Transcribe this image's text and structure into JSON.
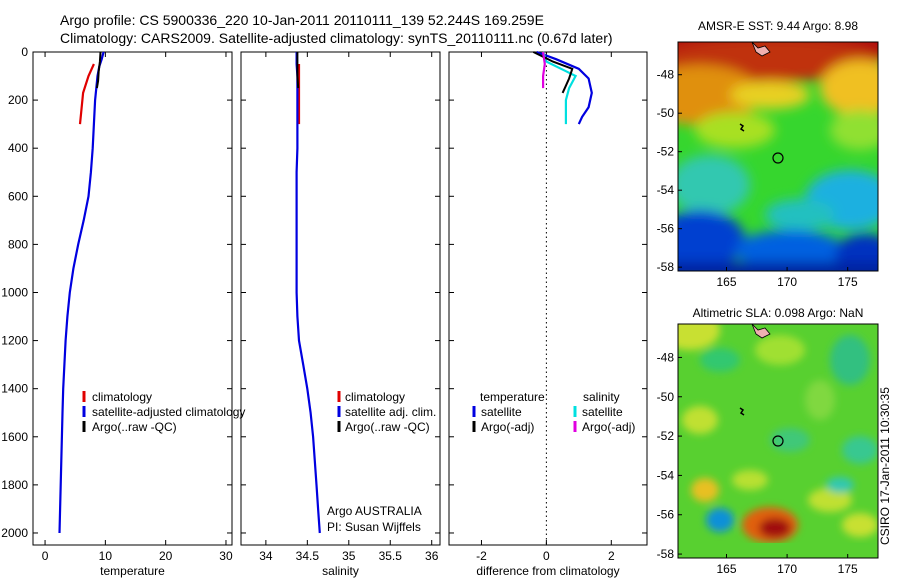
{
  "header": {
    "title_line1": "Argo profile: CS 5900336_220 10-Jan-2011 20110111_139 52.244S 169.259E",
    "title_line2": "Climatology: CARS2009. Satellite-adjusted climatology: synTS_20110111.nc (0.67d later)"
  },
  "chart_data": [
    {
      "type": "line",
      "name": "temperature-profile",
      "xlabel": "temperature",
      "ylabel": "",
      "xlim": [
        -2,
        31
      ],
      "ylim": [
        2050,
        0
      ],
      "xticks": [
        0,
        10,
        20,
        30
      ],
      "yticks": [
        0,
        200,
        400,
        600,
        800,
        1000,
        1200,
        1400,
        1600,
        1800,
        2000
      ],
      "legend": [
        "climatology",
        "satellite-adjusted climatology",
        "Argo(..raw -QC)"
      ],
      "series": [
        {
          "name": "climatology",
          "color": "#e00000",
          "points": [
            [
              8.1,
              50
            ],
            [
              7.2,
              100
            ],
            [
              6.3,
              170
            ],
            [
              6.0,
              250
            ],
            [
              5.8,
              300
            ]
          ]
        },
        {
          "name": "satellite-adjusted climatology",
          "color": "#0000e0",
          "points": [
            [
              9.7,
              0
            ],
            [
              9.4,
              30
            ],
            [
              9.0,
              60
            ],
            [
              8.7,
              100
            ],
            [
              8.5,
              150
            ],
            [
              8.3,
              200
            ],
            [
              8.1,
              300
            ],
            [
              7.9,
              400
            ],
            [
              7.6,
              500
            ],
            [
              7.2,
              600
            ],
            [
              6.4,
              700
            ],
            [
              5.5,
              800
            ],
            [
              4.7,
              900
            ],
            [
              4.1,
              1000
            ],
            [
              3.7,
              1100
            ],
            [
              3.4,
              1200
            ],
            [
              3.2,
              1300
            ],
            [
              3.0,
              1400
            ],
            [
              2.9,
              1500
            ],
            [
              2.8,
              1600
            ],
            [
              2.7,
              1700
            ],
            [
              2.6,
              1800
            ],
            [
              2.5,
              1900
            ],
            [
              2.4,
              2000
            ]
          ]
        },
        {
          "name": "Argo(..raw -QC)",
          "color": "#000000",
          "points": [
            [
              9.2,
              0
            ],
            [
              9.1,
              40
            ],
            [
              8.9,
              80
            ],
            [
              8.8,
              120
            ],
            [
              8.6,
              150
            ]
          ]
        }
      ]
    },
    {
      "type": "line",
      "name": "salinity-profile",
      "xlabel": "salinity",
      "ylabel": "",
      "xlim": [
        33.7,
        36.1
      ],
      "ylim": [
        2050,
        0
      ],
      "xticks": [
        34,
        34.5,
        35,
        35.5,
        36
      ],
      "xticklabels": [
        "34",
        "34.5",
        "35",
        "35.5",
        "36"
      ],
      "legend": [
        "climatology",
        "satellite adj. clim.",
        "Argo(..raw -QC)"
      ],
      "annotations": [
        "Argo AUSTRALIA",
        "PI: Susan Wijffels"
      ],
      "series": [
        {
          "name": "climatology",
          "color": "#e00000",
          "points": [
            [
              34.4,
              50
            ],
            [
              34.4,
              100
            ],
            [
              34.4,
              200
            ],
            [
              34.4,
              300
            ]
          ]
        },
        {
          "name": "satellite adj. clim.",
          "color": "#0000e0",
          "points": [
            [
              34.37,
              0
            ],
            [
              34.37,
              50
            ],
            [
              34.38,
              100
            ],
            [
              34.38,
              200
            ],
            [
              34.38,
              300
            ],
            [
              34.38,
              400
            ],
            [
              34.37,
              500
            ],
            [
              34.37,
              600
            ],
            [
              34.37,
              700
            ],
            [
              34.37,
              800
            ],
            [
              34.37,
              900
            ],
            [
              34.37,
              1000
            ],
            [
              34.38,
              1100
            ],
            [
              34.4,
              1200
            ],
            [
              34.45,
              1300
            ],
            [
              34.5,
              1400
            ],
            [
              34.54,
              1500
            ],
            [
              34.57,
              1600
            ],
            [
              34.59,
              1700
            ],
            [
              34.61,
              1800
            ],
            [
              34.63,
              1900
            ],
            [
              34.65,
              2000
            ]
          ]
        },
        {
          "name": "Argo(..raw -QC)",
          "color": "#000000",
          "points": [
            [
              34.38,
              0
            ],
            [
              34.38,
              50
            ],
            [
              34.38,
              100
            ],
            [
              34.39,
              150
            ]
          ]
        }
      ]
    },
    {
      "type": "line",
      "name": "difference-profile",
      "xlabel": "difference from climatology",
      "ylabel": "",
      "xlim": [
        -3,
        3.1
      ],
      "ylim": [
        2050,
        0
      ],
      "xticks": [
        -2,
        0,
        2
      ],
      "legend_title_left": "temperature",
      "legend_title_right": "salinity",
      "legend_left": [
        "satellite",
        "Argo(-adj)"
      ],
      "legend_right": [
        "satellite",
        "Argo(-adj)"
      ],
      "series": [
        {
          "name": "temperature satellite",
          "color": "#0000e0",
          "points": [
            [
              -0.3,
              0
            ],
            [
              0.3,
              30
            ],
            [
              1.0,
              70
            ],
            [
              1.3,
              110
            ],
            [
              1.4,
              170
            ],
            [
              1.3,
              230
            ],
            [
              1.1,
              270
            ],
            [
              1.0,
              300
            ]
          ]
        },
        {
          "name": "salinity satellite",
          "color": "#00e0e0",
          "points": [
            [
              -0.1,
              0
            ],
            [
              0.0,
              40
            ],
            [
              0.6,
              80
            ],
            [
              0.9,
              100
            ],
            [
              0.7,
              150
            ],
            [
              0.6,
              200
            ],
            [
              0.6,
              260
            ],
            [
              0.6,
              300
            ]
          ]
        },
        {
          "name": "temperature Argo(-adj)",
          "color": "#000000",
          "points": [
            [
              -0.4,
              0
            ],
            [
              0.2,
              40
            ],
            [
              0.8,
              70
            ],
            [
              0.7,
              110
            ],
            [
              0.6,
              140
            ],
            [
              0.5,
              170
            ]
          ]
        },
        {
          "name": "salinity Argo(-adj)",
          "color": "#e000e0",
          "points": [
            [
              -0.1,
              0
            ],
            [
              -0.05,
              50
            ],
            [
              -0.1,
              100
            ],
            [
              -0.1,
              150
            ]
          ]
        }
      ]
    },
    {
      "type": "heatmap",
      "name": "sst-map",
      "title": "AMSR-E SST: 9.44 Argo: 8.98",
      "xlim": [
        161,
        177.5
      ],
      "ylim": [
        -58.2,
        -46.3
      ],
      "xticks": [
        165,
        170,
        175
      ],
      "yticks": [
        -48,
        -50,
        -52,
        -54,
        -56,
        -58
      ],
      "float_position": [
        169.259,
        -52.244
      ]
    },
    {
      "type": "heatmap",
      "name": "sla-map",
      "title": "Altimetric SLA: 0.098 Argo: NaN",
      "xlim": [
        161,
        177.5
      ],
      "ylim": [
        -58.2,
        -46.3
      ],
      "xticks": [
        165,
        170,
        175
      ],
      "yticks": [
        -48,
        -50,
        -52,
        -54,
        -56,
        -58
      ],
      "float_position": [
        169.259,
        -52.244
      ]
    }
  ],
  "footer": {
    "credit": "CSIRO 17-Jan-2011 10:30:35"
  }
}
